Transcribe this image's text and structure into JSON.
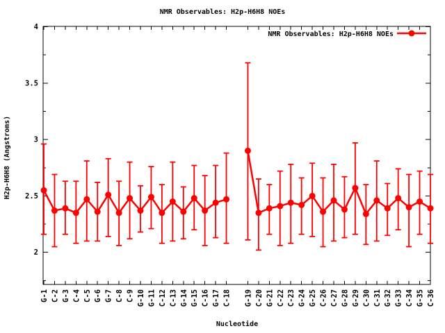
{
  "title": "NMR Observables: H2p-H6H8 NOEs",
  "chart_data": {
    "type": "line",
    "title": "NMR Observables: H2p-H6H8 NOEs",
    "xlabel": "Nucleotide",
    "ylabel": "H2p-H6H8 (Angstroms)",
    "legend": {
      "label": "NMR Observables: H2p-H6H8 NOEs",
      "position": "top-right-inside",
      "marker": "filled-circle-with-line"
    },
    "series_color": "#ff0000",
    "axis_color": "#000000",
    "background_color": "#ffffff",
    "grid": false,
    "ylim": [
      1.72,
      4.0
    ],
    "yticks": [
      2,
      2.5,
      3,
      3.5,
      4
    ],
    "ytick_labels": [
      "2",
      "2.5",
      "3",
      "3.5",
      "4"
    ],
    "y_minor_ticks": [
      1.75,
      2.25,
      2.75,
      3.25,
      3.75
    ],
    "line_gap_after": "C-18",
    "categories": [
      "G-1",
      "C-2",
      "G-3",
      "C-4",
      "C-5",
      "G-6",
      "G-7",
      "C-8",
      "C-9",
      "G-10",
      "G-11",
      "C-12",
      "C-13",
      "G-14",
      "G-15",
      "C-16",
      "G-17",
      "C-18",
      "G-19",
      "C-20",
      "G-21",
      "C-22",
      "C-23",
      "G-24",
      "G-25",
      "C-26",
      "C-27",
      "G-28",
      "G-29",
      "C-30",
      "C-31",
      "G-32",
      "G-33",
      "C-34",
      "G-35",
      "C-36"
    ],
    "values": [
      2.55,
      2.37,
      2.39,
      2.35,
      2.47,
      2.36,
      2.51,
      2.35,
      2.48,
      2.37,
      2.49,
      2.35,
      2.45,
      2.36,
      2.48,
      2.37,
      2.44,
      2.47,
      2.9,
      2.35,
      2.39,
      2.41,
      2.44,
      2.42,
      2.5,
      2.36,
      2.46,
      2.38,
      2.57,
      2.34,
      2.46,
      2.39,
      2.48,
      2.4,
      2.45,
      2.39
    ],
    "err_low": [
      2.16,
      2.05,
      2.16,
      2.08,
      2.1,
      2.1,
      2.14,
      2.06,
      2.12,
      2.18,
      2.21,
      2.08,
      2.1,
      2.12,
      2.2,
      2.06,
      2.13,
      2.08,
      2.11,
      2.02,
      2.16,
      2.06,
      2.08,
      2.16,
      2.14,
      2.05,
      2.1,
      2.13,
      2.16,
      2.07,
      2.1,
      2.15,
      2.2,
      2.05,
      2.16,
      2.08
    ],
    "err_high": [
      2.96,
      2.69,
      2.63,
      2.63,
      2.81,
      2.62,
      2.83,
      2.63,
      2.8,
      2.59,
      2.76,
      2.6,
      2.8,
      2.58,
      2.77,
      2.68,
      2.77,
      2.88,
      3.68,
      2.65,
      2.6,
      2.72,
      2.78,
      2.66,
      2.79,
      2.66,
      2.78,
      2.67,
      2.97,
      2.6,
      2.81,
      2.61,
      2.74,
      2.69,
      2.72,
      2.69
    ]
  }
}
